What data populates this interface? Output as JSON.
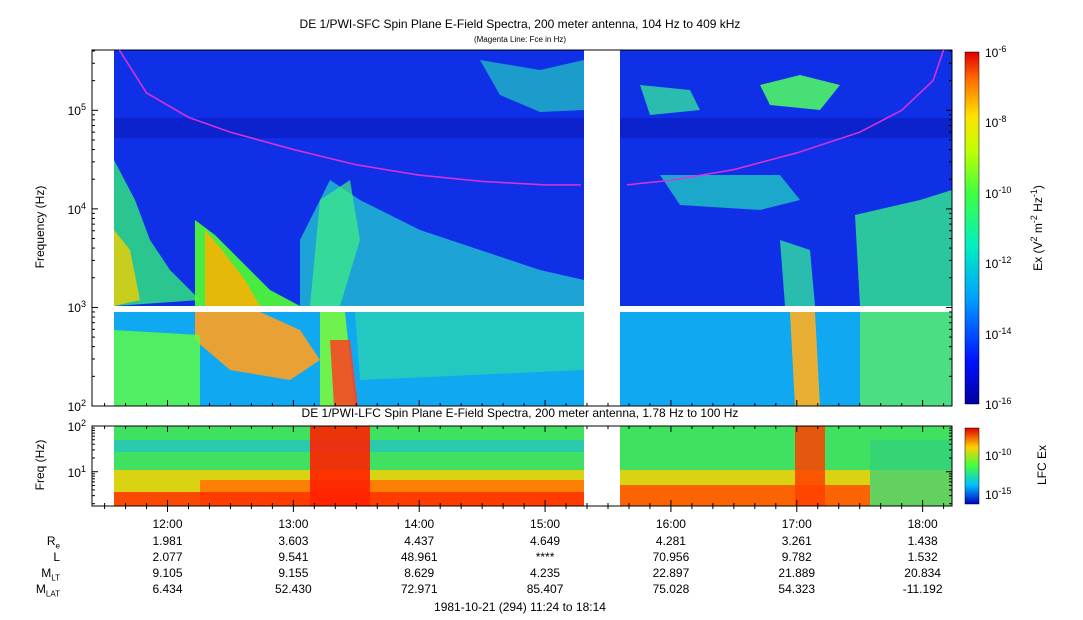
{
  "chart_data": [
    {
      "type": "heatmap",
      "title": "DE 1/PWI-SFC  Spin Plane E-Field Spectra, 200 meter antenna, 104 Hz to 409 kHz",
      "subtitle": "(Magenta Line: Fce in Hz)",
      "ylabel": "Frequency (Hz)",
      "yscale": "log",
      "ylim": [
        100,
        409000
      ],
      "ytick_labels": [
        "10^2",
        "10^3",
        "10^4",
        "10^5"
      ],
      "colorbar": {
        "label": "Ex (V^2 m^-2 Hz^-1)",
        "scale": "log",
        "range": [
          1e-16,
          1e-06
        ],
        "tick_labels": [
          "10^-6",
          "10^-8",
          "10^-10",
          "10^-12",
          "10^-14",
          "10^-16"
        ]
      },
      "data_gap": [
        "15:20",
        "15:38"
      ],
      "series": [
        {
          "name": "Fce",
          "color": "#e030e0",
          "points": [
            {
              "t": "11:37",
              "f": 409000
            },
            {
              "t": "11:50",
              "f": 150000
            },
            {
              "t": "12:10",
              "f": 85000
            },
            {
              "t": "12:30",
              "f": 60000
            },
            {
              "t": "13:00",
              "f": 40000
            },
            {
              "t": "13:30",
              "f": 28000
            },
            {
              "t": "14:00",
              "f": 22000
            },
            {
              "t": "14:30",
              "f": 19000
            },
            {
              "t": "15:00",
              "f": 17500
            },
            {
              "t": "15:17",
              "f": 17500
            },
            {
              "t": "15:39",
              "f": 17500
            },
            {
              "t": "16:00",
              "f": 19500
            },
            {
              "t": "16:30",
              "f": 25000
            },
            {
              "t": "17:00",
              "f": 37000
            },
            {
              "t": "17:30",
              "f": 60000
            },
            {
              "t": "17:50",
              "f": 100000
            },
            {
              "t": "18:05",
              "f": 200000
            },
            {
              "t": "18:10",
              "f": 409000
            }
          ]
        }
      ]
    },
    {
      "type": "heatmap",
      "title": "DE 1/PWI-LFC  Spin Plane E-Field Spectra, 200 meter antenna, 1.78 Hz to 100 Hz",
      "ylabel": "Freq (Hz)",
      "yscale": "log",
      "ylim": [
        1.78,
        100
      ],
      "ytick_labels": [
        "10^1",
        "10^2"
      ],
      "colorbar": {
        "label": "LFC Ex",
        "scale": "log",
        "tick_labels": [
          "10^-10",
          "10^-15"
        ]
      },
      "data_gap": [
        "15:20",
        "15:38"
      ]
    }
  ],
  "xaxis": {
    "tick_labels": [
      "12:00",
      "13:00",
      "14:00",
      "15:00",
      "16:00",
      "17:00",
      "18:00"
    ],
    "range": [
      "11:24",
      "18:14"
    ],
    "caption": "1981-10-21 (294) 11:24 to 18:14"
  },
  "ephemeris": [
    {
      "base": "R",
      "sub": "e",
      "values": [
        "1.981",
        "3.603",
        "4.437",
        "4.649",
        "4.281",
        "3.261",
        "1.438"
      ]
    },
    {
      "base": "L",
      "sub": "",
      "values": [
        "2.077",
        "9.541",
        "48.961",
        "****",
        "70.956",
        "9.782",
        "1.532"
      ]
    },
    {
      "base": "M",
      "sub": "LT",
      "values": [
        "9.105",
        "9.155",
        "8.629",
        "4.235",
        "22.897",
        "21.889",
        "20.834"
      ]
    },
    {
      "base": "M",
      "sub": "LAT",
      "values": [
        "6.434",
        "52.430",
        "72.971",
        "85.407",
        "75.028",
        "54.323",
        "-11.192"
      ]
    }
  ]
}
